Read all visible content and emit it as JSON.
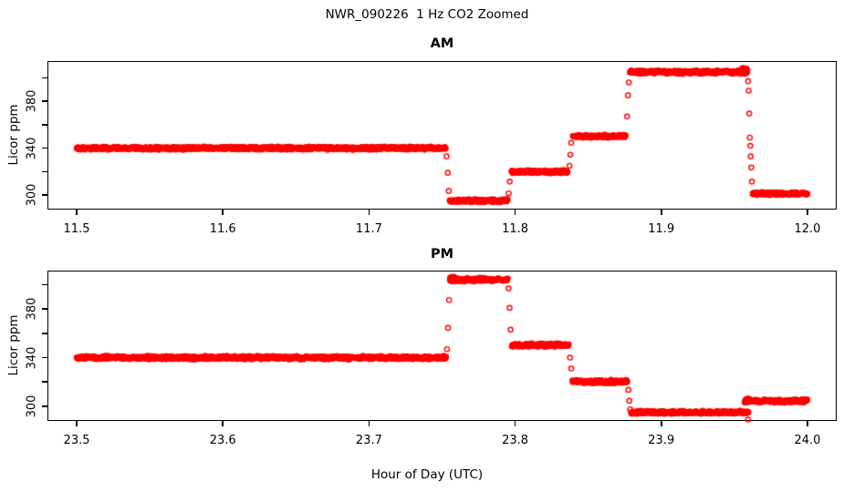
{
  "figure": {
    "title": "NWR_090226  1 Hz CO2 Zoomed",
    "xlabel": "Hour of Day (UTC)",
    "background": "#FFFFFF",
    "text_color": "#000000"
  },
  "chart_data": [
    {
      "type": "scatter",
      "panel": "AM",
      "title": "AM",
      "ylabel": "Licor ppm",
      "marker": "open-circle",
      "color": "#FF0000",
      "sample_rate_hz": 1,
      "grid": false,
      "xlim": [
        11.48,
        12.02
      ],
      "ylim": [
        287.7,
        414.2
      ],
      "xticks": [
        {
          "value": 11.5,
          "label": "11.5"
        },
        {
          "value": 11.6,
          "label": "11.6"
        },
        {
          "value": 11.7,
          "label": "11.7"
        },
        {
          "value": 11.8,
          "label": "11.8"
        },
        {
          "value": 11.9,
          "label": "11.9"
        },
        {
          "value": 12.0,
          "label": "12.0"
        }
      ],
      "yticks": [
        {
          "value": 300,
          "label": "300"
        },
        {
          "value": 320,
          "label": ""
        },
        {
          "value": 340,
          "label": "340"
        },
        {
          "value": 360,
          "label": ""
        },
        {
          "value": 380,
          "label": "380"
        },
        {
          "value": 400,
          "label": ""
        }
      ],
      "segments": [
        {
          "t_start": 11.5,
          "t_end": 11.7525,
          "value": 340.0,
          "noise": 1.6
        },
        {
          "t_start": 11.7552,
          "t_end": 11.795,
          "value": 295.2,
          "noise": 1.5
        },
        {
          "t_start": 11.7975,
          "t_end": 11.836,
          "value": 319.8,
          "noise": 1.5
        },
        {
          "t_start": 11.8395,
          "t_end": 11.8758,
          "value": 350.2,
          "noise": 1.5
        },
        {
          "t_start": 11.8785,
          "t_end": 11.959,
          "value": 404.8,
          "noise": 1.7
        },
        {
          "t_start": 11.9552,
          "t_end": 11.959,
          "value": 407.2,
          "noise": 1.6
        },
        {
          "t_start": 11.9625,
          "t_end": 12.0,
          "value": 301.3,
          "noise": 1.4
        }
      ],
      "transition_points": [
        [
          11.7531,
          333.0
        ],
        [
          11.7539,
          319.0
        ],
        [
          11.7546,
          303.5
        ],
        [
          11.7956,
          301.5
        ],
        [
          11.7963,
          311.5
        ],
        [
          11.8372,
          325.0
        ],
        [
          11.8378,
          334.5
        ],
        [
          11.8384,
          344.5
        ],
        [
          11.8766,
          367.0
        ],
        [
          11.8772,
          385.0
        ],
        [
          11.8778,
          396.0
        ],
        [
          11.9594,
          397.0
        ],
        [
          11.9598,
          389.0
        ],
        [
          11.9602,
          369.5
        ],
        [
          11.9606,
          349.0
        ],
        [
          11.9609,
          342.0
        ],
        [
          11.9612,
          333.0
        ],
        [
          11.9616,
          323.5
        ],
        [
          11.962,
          311.5
        ]
      ]
    },
    {
      "type": "scatter",
      "panel": "PM",
      "title": "PM",
      "ylabel": "Licor ppm",
      "marker": "open-circle",
      "color": "#FF0000",
      "sample_rate_hz": 1,
      "grid": false,
      "xlim": [
        23.48,
        24.02
      ],
      "ylim": [
        287.9,
        411.7
      ],
      "xticks": [
        {
          "value": 23.5,
          "label": "23.5"
        },
        {
          "value": 23.6,
          "label": "23.6"
        },
        {
          "value": 23.7,
          "label": "23.7"
        },
        {
          "value": 23.8,
          "label": "23.8"
        },
        {
          "value": 23.9,
          "label": "23.9"
        },
        {
          "value": 24.0,
          "label": "24.0"
        }
      ],
      "yticks": [
        {
          "value": 300,
          "label": "300"
        },
        {
          "value": 320,
          "label": ""
        },
        {
          "value": 340,
          "label": "340"
        },
        {
          "value": 360,
          "label": ""
        },
        {
          "value": 380,
          "label": "380"
        },
        {
          "value": 400,
          "label": ""
        }
      ],
      "segments": [
        {
          "t_start": 23.5,
          "t_end": 23.753,
          "value": 340.0,
          "noise": 1.6
        },
        {
          "t_start": 23.7555,
          "t_end": 23.795,
          "value": 404.3,
          "noise": 1.7
        },
        {
          "t_start": 23.7555,
          "t_end": 23.7595,
          "value": 405.8,
          "noise": 1.6
        },
        {
          "t_start": 23.7978,
          "t_end": 23.8368,
          "value": 350.3,
          "noise": 1.5
        },
        {
          "t_start": 23.8392,
          "t_end": 23.8768,
          "value": 320.3,
          "noise": 1.5
        },
        {
          "t_start": 23.8793,
          "t_end": 23.9598,
          "value": 295.0,
          "noise": 1.5
        },
        {
          "t_start": 23.9572,
          "t_end": 24.0,
          "value": 304.3,
          "noise": 1.5
        },
        {
          "t_start": 23.9572,
          "t_end": 23.96,
          "value": 304.8,
          "noise": 2.2
        }
      ],
      "transition_points": [
        [
          23.7534,
          347.0
        ],
        [
          23.7541,
          364.5
        ],
        [
          23.7548,
          387.5
        ],
        [
          23.7955,
          397.0
        ],
        [
          23.7962,
          381.0
        ],
        [
          23.7969,
          363.0
        ],
        [
          23.8376,
          340.0
        ],
        [
          23.8384,
          331.0
        ],
        [
          23.8775,
          313.5
        ],
        [
          23.8781,
          304.5
        ],
        [
          23.8787,
          297.5
        ],
        [
          23.9594,
          289.0
        ]
      ]
    }
  ]
}
